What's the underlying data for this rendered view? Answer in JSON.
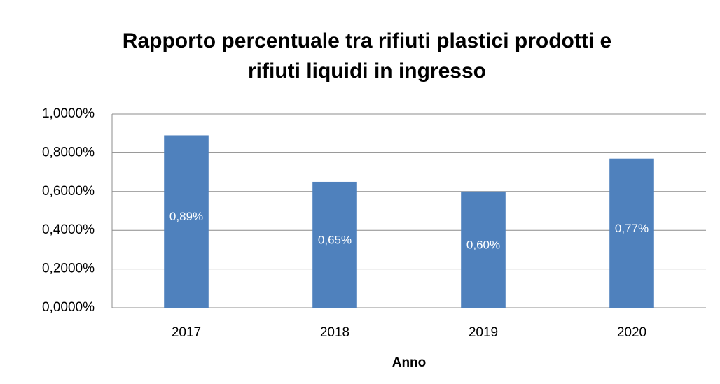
{
  "chart_data": {
    "type": "bar",
    "title": [
      "Rapporto percentuale tra rifiuti plastici prodotti e",
      "rifiuti liquidi in ingresso"
    ],
    "x_label": "Anno",
    "categories": [
      "2017",
      "2018",
      "2019",
      "2020"
    ],
    "values": [
      0.89,
      0.65,
      0.6,
      0.77
    ],
    "value_labels": [
      "0,89%",
      "0,65%",
      "0,60%",
      "0,77%"
    ],
    "color": "#4f81bd",
    "ylim": [
      0,
      1
    ],
    "yticks": [
      {
        "value": 0,
        "label": "0,0000%"
      },
      {
        "value": 0.2,
        "label": "0,2000%"
      },
      {
        "value": 0.4,
        "label": "0,4000%"
      },
      {
        "value": 0.6,
        "label": "0,6000%"
      },
      {
        "value": 0.8,
        "label": "0,8000%"
      },
      {
        "value": 1,
        "label": "1,0000%"
      }
    ],
    "grid": true
  }
}
